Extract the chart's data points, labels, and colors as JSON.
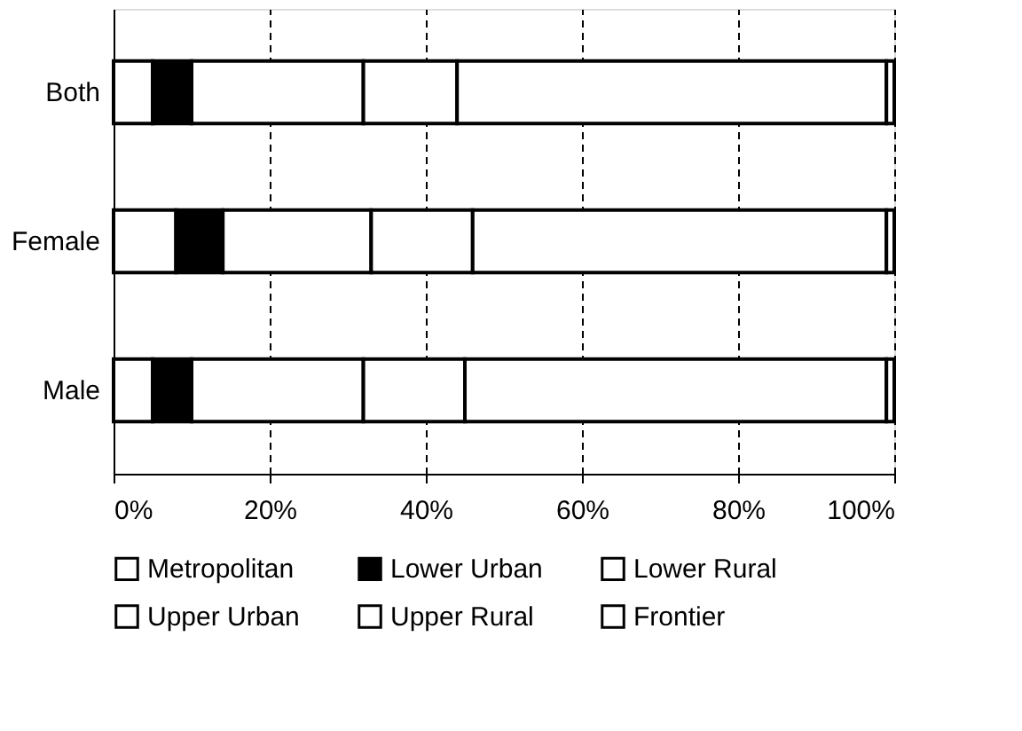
{
  "chart_data": {
    "type": "bar",
    "orientation": "horizontal",
    "stacked": true,
    "categories": [
      "Both",
      "Female",
      "Male"
    ],
    "series": [
      {
        "name": "Metropolitan",
        "color": "#ffffff",
        "values": [
          5,
          8,
          5
        ]
      },
      {
        "name": "Lower Urban",
        "color": "#000000",
        "values": [
          5,
          6,
          5
        ]
      },
      {
        "name": "Lower Rural",
        "color": "#ffffff",
        "values": [
          22,
          19,
          22
        ]
      },
      {
        "name": "Upper Urban",
        "color": "#ffffff",
        "values": [
          12,
          13,
          13
        ]
      },
      {
        "name": "Upper Rural",
        "color": "#ffffff",
        "values": [
          55,
          53,
          54
        ]
      },
      {
        "name": "Frontier",
        "color": "#ffffff",
        "values": [
          1,
          1,
          1
        ]
      }
    ],
    "xlim": [
      0,
      100
    ],
    "xticks": [
      {
        "value": 0,
        "label": "0%"
      },
      {
        "value": 20,
        "label": "20%"
      },
      {
        "value": 40,
        "label": "40%"
      },
      {
        "value": 60,
        "label": "60%"
      },
      {
        "value": 80,
        "label": "80%"
      },
      {
        "value": 100,
        "label": "100%"
      }
    ],
    "grid": "x",
    "legend": "bottom"
  }
}
